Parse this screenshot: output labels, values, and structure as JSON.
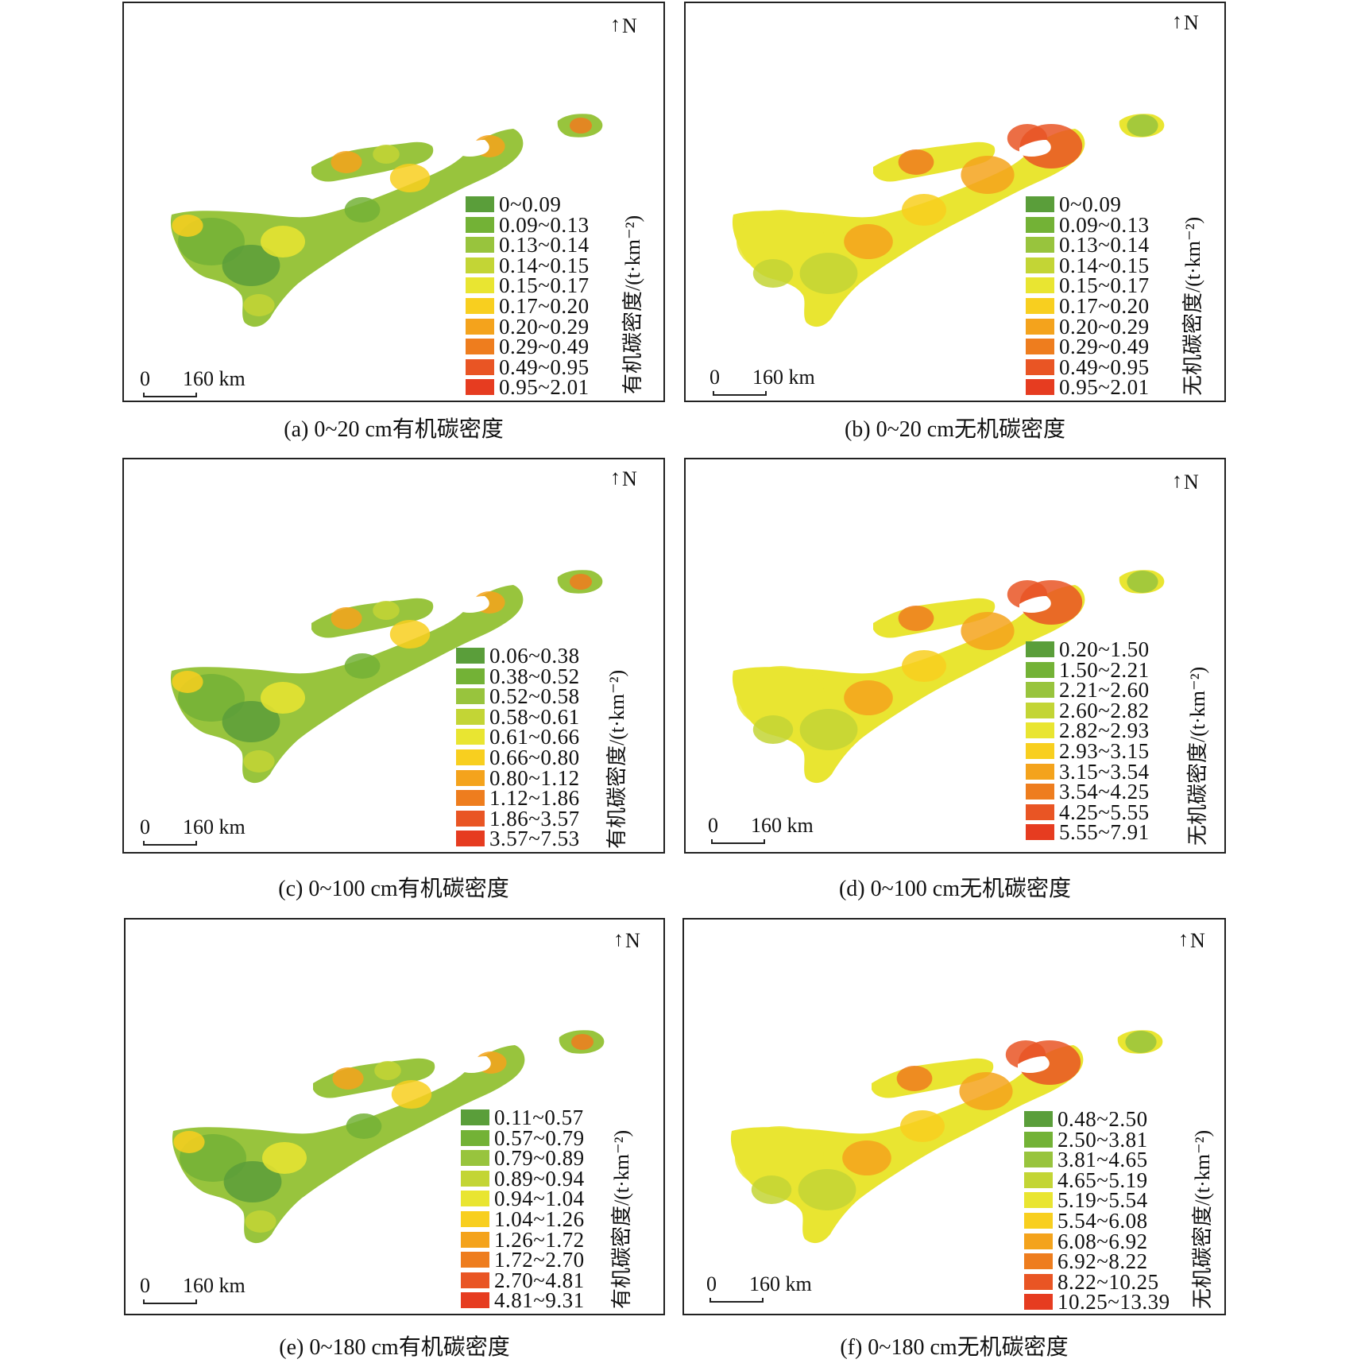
{
  "colors": [
    "#5a9e3a",
    "#73b236",
    "#98c43d",
    "#c3d535",
    "#e9e531",
    "#f8cf1f",
    "#f4a31c",
    "#ee7d1e",
    "#e95524",
    "#e63c20"
  ],
  "panels": [
    {
      "id": "a",
      "north_label": "N",
      "scale_zero": "0",
      "scale_distance": "160 km",
      "legend_title": "有机碳密度/(t·km⁻²)",
      "legend_classes": [
        "0~0.09",
        "0.09~0.13",
        "0.13~0.14",
        "0.14~0.15",
        "0.15~0.17",
        "0.17~0.20",
        "0.20~0.29",
        "0.29~0.49",
        "0.49~0.95",
        "0.95~2.01"
      ],
      "caption": "(a) 0~20 cm有机碳密度"
    },
    {
      "id": "b",
      "north_label": "N",
      "scale_zero": "0",
      "scale_distance": "160 km",
      "legend_title": "无机碳密度/(t·km⁻²)",
      "legend_classes": [
        "0~0.09",
        "0.09~0.13",
        "0.13~0.14",
        "0.14~0.15",
        "0.15~0.17",
        "0.17~0.20",
        "0.20~0.29",
        "0.29~0.49",
        "0.49~0.95",
        "0.95~2.01"
      ],
      "caption": "(b) 0~20 cm无机碳密度"
    },
    {
      "id": "c",
      "north_label": "N",
      "scale_zero": "0",
      "scale_distance": "160 km",
      "legend_title": "有机碳密度/(t·km⁻²)",
      "legend_classes": [
        "0.06~0.38",
        "0.38~0.52",
        "0.52~0.58",
        "0.58~0.61",
        "0.61~0.66",
        "0.66~0.80",
        "0.80~1.12",
        "1.12~1.86",
        "1.86~3.57",
        "3.57~7.53"
      ],
      "caption": "(c) 0~100 cm有机碳密度"
    },
    {
      "id": "d",
      "north_label": "N",
      "scale_zero": "0",
      "scale_distance": "160 km",
      "legend_title": "无机碳密度/(t·km⁻²)",
      "legend_classes": [
        "0.20~1.50",
        "1.50~2.21",
        "2.21~2.60",
        "2.60~2.82",
        "2.82~2.93",
        "2.93~3.15",
        "3.15~3.54",
        "3.54~4.25",
        "4.25~5.55",
        "5.55~7.91"
      ],
      "caption": "(d) 0~100 cm无机碳密度"
    },
    {
      "id": "e",
      "north_label": "N",
      "scale_zero": "0",
      "scale_distance": "160 km",
      "legend_title": "有机碳密度/(t·km⁻²)",
      "legend_classes": [
        "0.11~0.57",
        "0.57~0.79",
        "0.79~0.89",
        "0.89~0.94",
        "0.94~1.04",
        "1.04~1.26",
        "1.26~1.72",
        "1.72~2.70",
        "2.70~4.81",
        "4.81~9.31"
      ],
      "caption": "(e) 0~180 cm有机碳密度"
    },
    {
      "id": "f",
      "north_label": "N",
      "scale_zero": "0",
      "scale_distance": "160 km",
      "legend_title": "无机碳密度/(t·km⁻²)",
      "legend_classes": [
        "0.48~2.50",
        "2.50~3.81",
        "3.81~4.65",
        "4.65~5.19",
        "5.19~5.54",
        "5.54~6.08",
        "6.08~6.92",
        "6.92~8.22",
        "8.22~10.25",
        "10.25~13.39"
      ],
      "caption": "(f) 0~180 cm无机碳密度"
    }
  ]
}
